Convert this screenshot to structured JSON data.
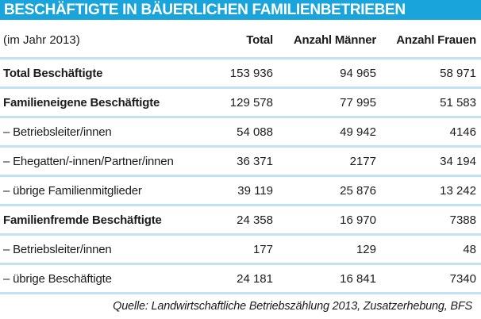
{
  "title": "BESCHÄFTIGTE IN BÄUERLICHEN FAMILIENBETRIEBEN",
  "subtitle": "(im Jahr 2013)",
  "columns": [
    "Total",
    "Anzahl Männer",
    "Anzahl Frauen"
  ],
  "table_rows": [
    {
      "label": "Total Beschäftigte",
      "bold": true,
      "total": "153 936",
      "maenner": "94 965",
      "frauen": "58 971"
    },
    {
      "label": "Familieneigene Beschäftigte",
      "bold": true,
      "total": "129 578",
      "maenner": "77 995",
      "frauen": "51 583"
    },
    {
      "label": "– Betriebsleiter/innen",
      "bold": false,
      "total": "54 088",
      "maenner": "49 942",
      "frauen": "4146"
    },
    {
      "label": "– Ehegatten/-innen/Partner/innen",
      "bold": false,
      "total": "36 371",
      "maenner": "2177",
      "frauen": "34 194"
    },
    {
      "label": "– übrige Familienmitglieder",
      "bold": false,
      "total": "39 119",
      "maenner": "25 876",
      "frauen": "13 242"
    },
    {
      "label": "Familienfremde Beschäftigte",
      "bold": true,
      "total": "24 358",
      "maenner": "16 970",
      "frauen": "7388"
    },
    {
      "label": "– Betriebsleiter/innen",
      "bold": false,
      "total": "177",
      "maenner": "129",
      "frauen": "48"
    },
    {
      "label": "– übrige Beschäftigte",
      "bold": false,
      "total": "24 181",
      "maenner": "16 841",
      "frauen": "7340"
    }
  ],
  "source": "Quelle: Landwirtschaftliche Betriebszählung 2013, Zusatzerhebung, BFS",
  "colors": {
    "title_bar": "#19a5dc",
    "separator": "#bfe3f2",
    "text": "#1c1c1c",
    "title_text": "#ffffff"
  },
  "chart_data": {
    "type": "table",
    "title": "BESCHÄFTIGTE IN BÄUERLICHEN FAMILIENBETRIEBEN",
    "subtitle": "(im Jahr 2013)",
    "columns": [
      "Total",
      "Anzahl Männer",
      "Anzahl Frauen"
    ],
    "rows": [
      {
        "label": "Total Beschäftigte",
        "values": [
          153936,
          94965,
          58971
        ]
      },
      {
        "label": "Familieneigene Beschäftigte",
        "values": [
          129578,
          77995,
          51583
        ]
      },
      {
        "label": "Betriebsleiter/innen",
        "values": [
          54088,
          49942,
          4146
        ]
      },
      {
        "label": "Ehegatten/-innen/Partner/innen",
        "values": [
          36371,
          2177,
          34194
        ]
      },
      {
        "label": "übrige Familienmitglieder",
        "values": [
          39119,
          25876,
          13242
        ]
      },
      {
        "label": "Familienfremde Beschäftigte",
        "values": [
          24358,
          16970,
          7388
        ]
      },
      {
        "label": "Betriebsleiter/innen",
        "values": [
          177,
          129,
          48
        ]
      },
      {
        "label": "übrige Beschäftigte",
        "values": [
          24181,
          16841,
          7340
        ]
      }
    ],
    "source": "Quelle: Landwirtschaftliche Betriebszählung 2013, Zusatzerhebung, BFS"
  }
}
